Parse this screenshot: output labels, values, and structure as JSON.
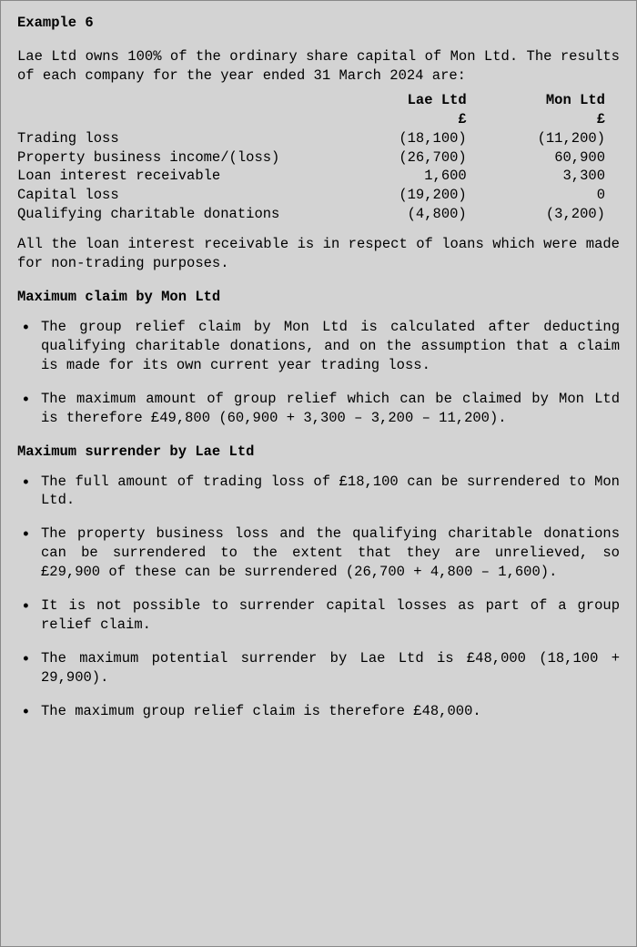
{
  "title": "Example 6",
  "intro": "Lae Ltd owns 100% of the ordinary share capital of Mon Ltd. The results of each company for the year ended 31 March 2024 are:",
  "table": {
    "col1_header": "Lae Ltd",
    "col2_header": "Mon Ltd",
    "currency": "£",
    "rows": [
      {
        "label": "Trading loss",
        "lae": "(18,100)",
        "mon": "(11,200)"
      },
      {
        "label": "Property business income/(loss)",
        "lae": "(26,700)",
        "mon": "60,900"
      },
      {
        "label": "Loan interest receivable",
        "lae": "1,600",
        "mon": "3,300"
      },
      {
        "label": "Capital loss",
        "lae": "(19,200)",
        "mon": "0"
      },
      {
        "label": "Qualifying charitable donations",
        "lae": "(4,800)",
        "mon": "(3,200)"
      }
    ]
  },
  "note": "All the loan interest receivable is in respect of loans which were made for non-trading purposes.",
  "section1_heading": "Maximum claim by Mon Ltd",
  "section1_bullets": [
    "The group relief claim by Mon Ltd is calculated after deducting qualifying charitable donations, and on the assumption that a claim is made for its own current year trading loss.",
    "The maximum amount of group relief which can be claimed by Mon Ltd is therefore £49,800 (60,900 + 3,300 – 3,200 – 11,200)."
  ],
  "section2_heading": "Maximum surrender by Lae Ltd",
  "section2_bullets": [
    "The full amount of trading loss of £18,100 can be surrendered to Mon Ltd.",
    "The property business loss and the qualifying charitable donations can be surrendered to the extent that they are unrelieved, so £29,900 of these can be surrendered (26,700 + 4,800 – 1,600).",
    "It is not possible to surrender capital losses as part of a group relief claim.",
    "The maximum potential surrender by Lae Ltd is £48,000 (18,100 + 29,900).",
    "The maximum group relief claim is therefore £48,000."
  ]
}
